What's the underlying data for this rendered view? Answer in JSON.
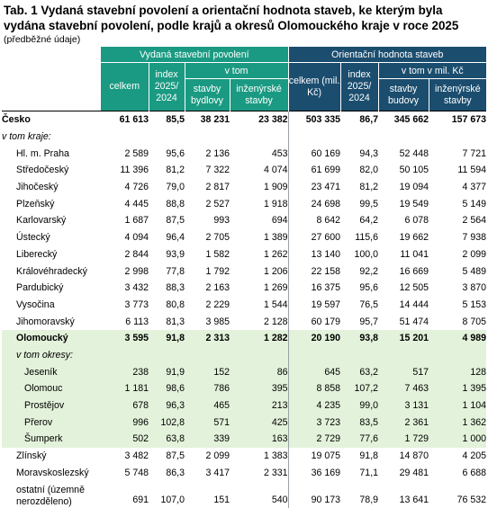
{
  "title": "Tab. 1 Vydaná stavební povolení a orientační hodnota staveb, ke kterým byla vydána stavební povolení, podle krajů a okresů Olomouckého kraje v roce 2025",
  "note": "(předběžné údaje)",
  "header": {
    "group1": "Vydaná stavební povolení",
    "group2": "Orientační hodnota staveb",
    "celkem": "celkem",
    "index": "index 2025/ 2024",
    "v_tom": "v tom",
    "stavby_bydlovy": "stavby bydlovy",
    "inz_stavby": "inženýrské stavby",
    "celkem_mil": "celkem (mil. Kč)",
    "index2": "index 2025/ 2024",
    "v_tom_mil": "v tom v mil. Kč",
    "stavby_budovy": "stavby budovy",
    "inz_stavby2": "inženýrské stavby"
  },
  "rows": [
    {
      "label": "Česko",
      "values": [
        "61 613",
        "85,5",
        "38 231",
        "23 382",
        "503 335",
        "86,7",
        "345 662",
        "157 673"
      ]
    },
    {
      "label": "v tom kraje:",
      "values": [
        "",
        "",
        "",
        "",
        "",
        "",
        "",
        ""
      ]
    },
    {
      "label": "Hl. m. Praha",
      "values": [
        "2 589",
        "95,6",
        "2 136",
        "453",
        "60 169",
        "94,3",
        "52 448",
        "7 721"
      ]
    },
    {
      "label": "Středočeský",
      "values": [
        "11 396",
        "81,2",
        "7 322",
        "4 074",
        "61 699",
        "82,0",
        "50 105",
        "11 594"
      ]
    },
    {
      "label": "Jihočeský",
      "values": [
        "4 726",
        "79,0",
        "2 817",
        "1 909",
        "23 471",
        "81,2",
        "19 094",
        "4 377"
      ]
    },
    {
      "label": "Plzeňský",
      "values": [
        "4 445",
        "88,8",
        "2 527",
        "1 918",
        "24 698",
        "99,5",
        "19 549",
        "5 149"
      ]
    },
    {
      "label": "Karlovarský",
      "values": [
        "1 687",
        "87,5",
        "993",
        "694",
        "8 642",
        "64,2",
        "6 078",
        "2 564"
      ]
    },
    {
      "label": "Ústecký",
      "values": [
        "4 094",
        "96,4",
        "2 705",
        "1 389",
        "27 600",
        "115,6",
        "19 662",
        "7 938"
      ]
    },
    {
      "label": "Liberecký",
      "values": [
        "2 844",
        "93,9",
        "1 582",
        "1 262",
        "13 140",
        "100,0",
        "11 041",
        "2 099"
      ]
    },
    {
      "label": "Královéhradecký",
      "values": [
        "2 998",
        "77,8",
        "1 792",
        "1 206",
        "22 158",
        "92,2",
        "16 669",
        "5 489"
      ]
    },
    {
      "label": "Pardubický",
      "values": [
        "3 432",
        "88,3",
        "2 163",
        "1 269",
        "16 375",
        "95,6",
        "12 505",
        "3 870"
      ]
    },
    {
      "label": "Vysočina",
      "values": [
        "3 773",
        "80,8",
        "2 229",
        "1 544",
        "19 597",
        "76,5",
        "14 444",
        "5 153"
      ]
    },
    {
      "label": "Jihomoravský",
      "values": [
        "6 113",
        "81,3",
        "3 985",
        "2 128",
        "60 179",
        "95,7",
        "51 474",
        "8 705"
      ]
    },
    {
      "label": "Olomoucký",
      "values": [
        "3 595",
        "91,8",
        "2 313",
        "1 282",
        "20 190",
        "93,8",
        "15 201",
        "4 989"
      ]
    },
    {
      "label": "v tom okresy:",
      "values": [
        "",
        "",
        "",
        "",
        "",
        "",
        "",
        ""
      ]
    },
    {
      "label": "Jeseník",
      "values": [
        "238",
        "91,9",
        "152",
        "86",
        "645",
        "63,2",
        "517",
        "128"
      ]
    },
    {
      "label": "Olomouc",
      "values": [
        "1 181",
        "98,6",
        "786",
        "395",
        "8 858",
        "107,2",
        "7 463",
        "1 395"
      ]
    },
    {
      "label": "Prostějov",
      "values": [
        "678",
        "96,3",
        "465",
        "213",
        "4 235",
        "99,0",
        "3 131",
        "1 104"
      ]
    },
    {
      "label": "Přerov",
      "values": [
        "996",
        "102,8",
        "571",
        "425",
        "3 723",
        "83,5",
        "2 361",
        "1 362"
      ]
    },
    {
      "label": "Šumperk",
      "values": [
        "502",
        "63,8",
        "339",
        "163",
        "2 729",
        "77,6",
        "1 729",
        "1 000"
      ]
    },
    {
      "label": "Zlínský",
      "values": [
        "3 482",
        "87,5",
        "2 099",
        "1 383",
        "19 075",
        "91,8",
        "14 870",
        "4 205"
      ]
    },
    {
      "label": "Moravskoslezský",
      "values": [
        "5 748",
        "86,3",
        "3 417",
        "2 331",
        "36 169",
        "71,1",
        "29 481",
        "6 688"
      ]
    },
    {
      "label": "ostatní (územně nerozděleno)",
      "values": [
        "691",
        "107,0",
        "151",
        "540",
        "90 173",
        "78,9",
        "13 641",
        "76 532"
      ]
    }
  ]
}
